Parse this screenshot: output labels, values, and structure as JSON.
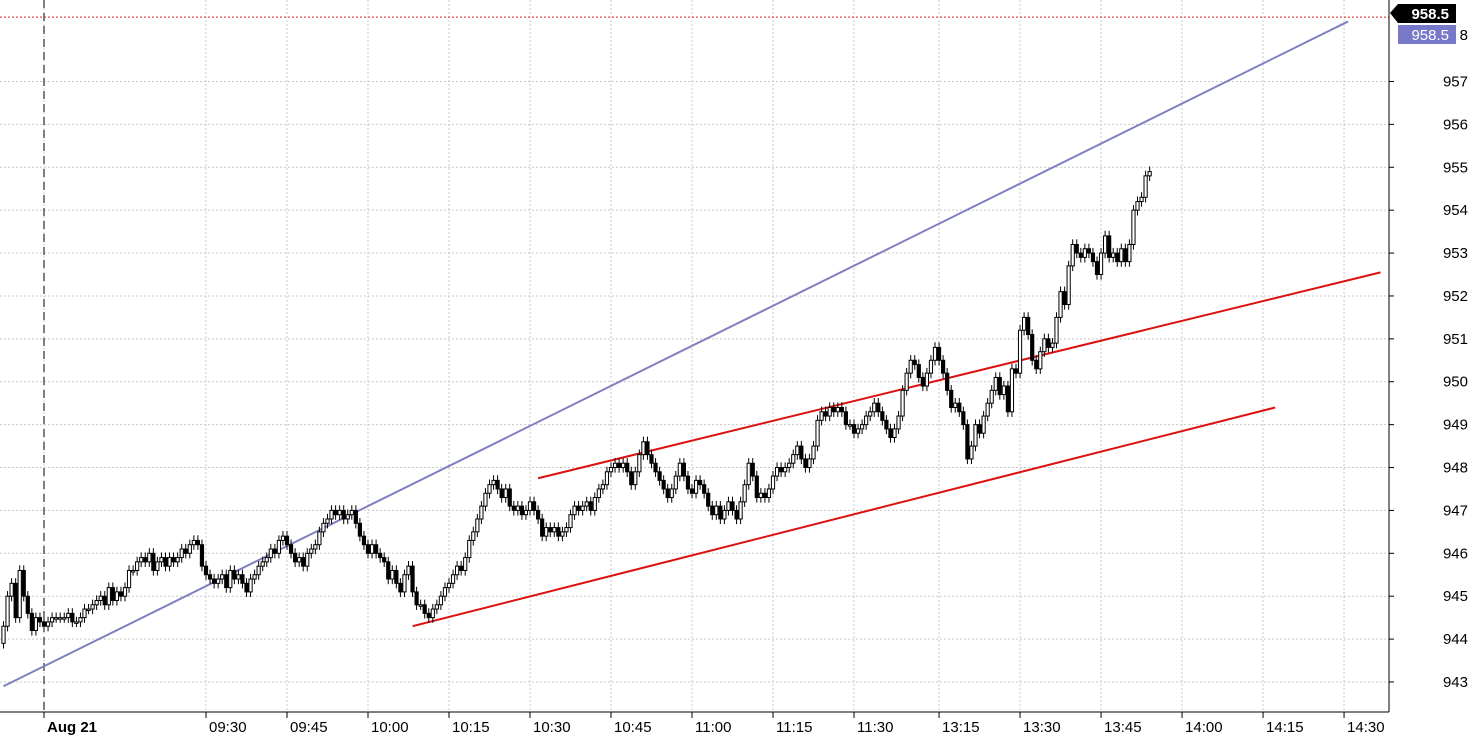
{
  "chart_data": {
    "type": "candlestick",
    "title": "",
    "xlabel": "",
    "ylabel": "",
    "ylim": [
      942.3,
      958.9
    ],
    "y_ticks": [
      943,
      944,
      945,
      946,
      947,
      948,
      949,
      950,
      951,
      952,
      953,
      954,
      955,
      956,
      957
    ],
    "x_ticks": [
      {
        "label": "Aug 21",
        "bold": true
      },
      {
        "label": "09:30"
      },
      {
        "label": "09:45"
      },
      {
        "label": "10:00"
      },
      {
        "label": "10:15"
      },
      {
        "label": "10:30"
      },
      {
        "label": "10:45"
      },
      {
        "label": "11:00"
      },
      {
        "label": "11:15"
      },
      {
        "label": "11:30"
      },
      {
        "label": "13:15"
      },
      {
        "label": "13:30"
      },
      {
        "label": "13:45"
      },
      {
        "label": "14:00"
      },
      {
        "label": "14:15"
      },
      {
        "label": "14:30"
      }
    ],
    "tick_index": [
      10,
      50,
      70,
      90,
      110,
      130,
      150,
      170,
      190,
      210,
      231,
      251,
      271,
      291,
      311,
      331
    ],
    "session_break_index": 10,
    "grid": true,
    "candle_step": 4.05,
    "first_index": 0,
    "closes": [
      944.3,
      945.0,
      945.3,
      944.5,
      945.6,
      945.0,
      944.6,
      944.2,
      944.5,
      944.4,
      944.3,
      944.4,
      944.5,
      944.5,
      944.5,
      944.5,
      944.6,
      944.4,
      944.4,
      944.5,
      944.7,
      944.7,
      944.8,
      944.9,
      945.0,
      944.8,
      945.2,
      944.9,
      945.1,
      945.0,
      945.2,
      945.6,
      945.6,
      945.8,
      945.9,
      945.8,
      946.0,
      945.6,
      945.8,
      945.9,
      945.7,
      945.9,
      945.8,
      945.9,
      946.1,
      946.0,
      946.2,
      946.3,
      946.2,
      945.7,
      945.5,
      945.4,
      945.3,
      945.4,
      945.5,
      945.2,
      945.6,
      945.4,
      945.5,
      945.3,
      945.1,
      945.4,
      945.5,
      945.7,
      945.8,
      945.9,
      946.1,
      946.0,
      946.3,
      946.4,
      946.2,
      946.0,
      945.8,
      945.9,
      945.7,
      946.0,
      946.1,
      946.2,
      946.5,
      946.7,
      946.8,
      947.0,
      946.9,
      947.0,
      946.8,
      946.9,
      947.0,
      946.7,
      946.4,
      946.2,
      946.0,
      946.2,
      946.0,
      945.9,
      945.8,
      945.4,
      945.6,
      945.3,
      945.1,
      945.5,
      945.7,
      945.1,
      944.8,
      944.8,
      944.6,
      944.5,
      944.7,
      944.8,
      945.0,
      945.2,
      945.3,
      945.5,
      945.7,
      945.6,
      945.9,
      946.3,
      946.5,
      946.8,
      947.1,
      947.4,
      947.6,
      947.7,
      947.5,
      947.3,
      947.5,
      947.1,
      947.0,
      947.1,
      946.9,
      947.0,
      947.2,
      947.0,
      946.8,
      946.4,
      946.6,
      946.5,
      946.6,
      946.4,
      946.5,
      946.6,
      946.9,
      947.1,
      947.0,
      947.1,
      947.2,
      947.0,
      947.3,
      947.5,
      947.6,
      947.9,
      948.0,
      948.1,
      948.0,
      948.1,
      947.9,
      947.6,
      947.9,
      948.3,
      948.6,
      948.3,
      948.1,
      947.9,
      947.7,
      947.5,
      947.3,
      947.5,
      947.8,
      948.1,
      947.8,
      947.5,
      947.4,
      947.7,
      947.6,
      947.4,
      947.1,
      946.9,
      947.1,
      946.8,
      947.0,
      947.2,
      947.0,
      946.8,
      947.2,
      947.6,
      948.1,
      947.8,
      947.3,
      947.4,
      947.3,
      947.5,
      947.8,
      948.0,
      947.9,
      948.0,
      948.1,
      948.3,
      948.5,
      948.2,
      948.0,
      948.2,
      948.5,
      949.1,
      949.3,
      949.2,
      949.4,
      949.3,
      949.4,
      949.3,
      949.0,
      949.0,
      948.8,
      948.9,
      949.0,
      949.2,
      949.3,
      949.5,
      949.3,
      949.1,
      948.9,
      948.7,
      948.9,
      949.2,
      949.8,
      950.2,
      950.5,
      950.4,
      950.1,
      949.9,
      950.2,
      950.5,
      950.8,
      950.5,
      950.2,
      949.8,
      949.4,
      949.5,
      949.3,
      949.0,
      948.2,
      948.5,
      949.0,
      948.8,
      949.2,
      949.5,
      949.8,
      950.1,
      949.7,
      949.9,
      949.3,
      950.3,
      950.2,
      951.2,
      951.5,
      951.1,
      950.5,
      950.3,
      950.7,
      951.0,
      950.8,
      950.9,
      951.5,
      952.1,
      951.8,
      952.7,
      953.2,
      953.0,
      952.9,
      953.1,
      953.0,
      952.8,
      952.5,
      953.0,
      953.4,
      952.9,
      953.0,
      952.8,
      953.1,
      952.8,
      953.2,
      954.0,
      954.2,
      954.3,
      954.8,
      954.9
    ],
    "lines": [
      {
        "name": "",
        "color": "#8080c0",
        "x1": 0,
        "y1": 942.9,
        "x2": 332,
        "y2": 958.4
      },
      {
        "name": "",
        "color": "#dd1010",
        "x1": 101,
        "y1": 944.3,
        "x2": 314,
        "y2": 949.4
      },
      {
        "name": "",
        "color": "#dd1010",
        "x1": 132,
        "y1": 947.75,
        "x2": 340,
        "y2": 952.55
      }
    ],
    "last_price_line": 958.5,
    "price_badges": [
      {
        "value": "958.5",
        "color": "#000000"
      },
      {
        "value": "958.5",
        "color": "#7878c8"
      }
    ],
    "partial_label": "8"
  }
}
